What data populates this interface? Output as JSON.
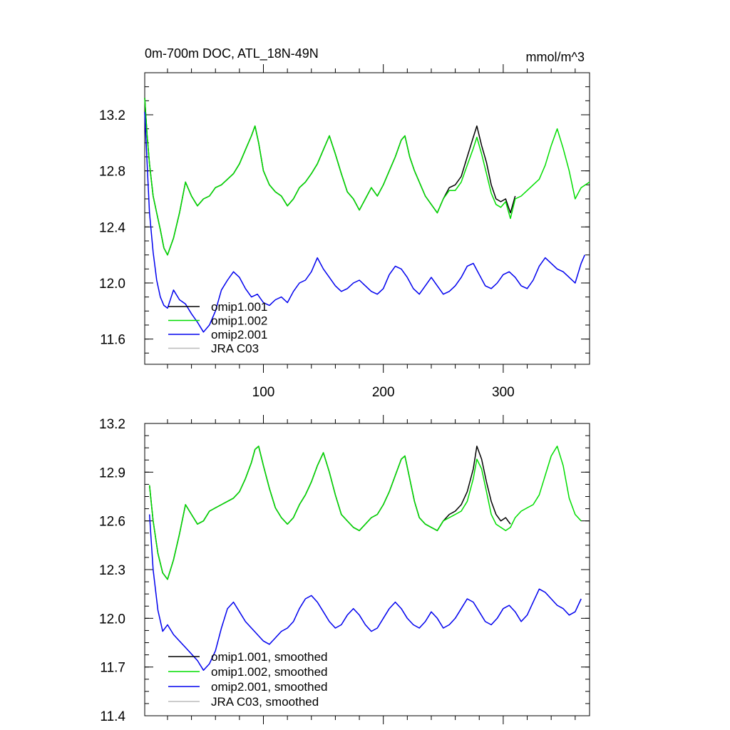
{
  "chart_data": [
    {
      "type": "line",
      "title": "0m-700m DOC, ATL_18N-49N",
      "units": "mmol/m^3",
      "xlim": [
        1,
        372
      ],
      "ylim": [
        11.42,
        13.5
      ],
      "xticks": [
        100,
        200,
        300
      ],
      "xtick_labels": [
        "100",
        "200",
        "300"
      ],
      "yticks": [
        11.6,
        12.0,
        12.4,
        12.8,
        13.2
      ],
      "ytick_labels": [
        "11.6",
        "12.0",
        "12.4",
        "12.8",
        "13.2"
      ],
      "grid": false,
      "legend_position": "bottom-left",
      "legend": [
        "omip1.001",
        "omip1.002",
        "omip2.001",
        "JRA C03"
      ],
      "series": [
        {
          "name": "omip1.001",
          "color": "#000000",
          "x": [
            1,
            3,
            5,
            8,
            11,
            14,
            17,
            20,
            25,
            30,
            35,
            40,
            45,
            50,
            55,
            60,
            65,
            70,
            75,
            80,
            85,
            90,
            93,
            96,
            100,
            105,
            110,
            115,
            120,
            125,
            130,
            135,
            140,
            145,
            150,
            155,
            160,
            165,
            170,
            175,
            180,
            185,
            190,
            195,
            200,
            205,
            210,
            215,
            218,
            222,
            226,
            230,
            235,
            240,
            245,
            250,
            255,
            260,
            265,
            270,
            275,
            278,
            282,
            286,
            290,
            294,
            298,
            302,
            306,
            310
          ],
          "y": [
            13.32,
            13.05,
            12.85,
            12.62,
            12.5,
            12.38,
            12.25,
            12.2,
            12.32,
            12.5,
            12.72,
            12.62,
            12.55,
            12.6,
            12.62,
            12.68,
            12.7,
            12.74,
            12.78,
            12.85,
            12.95,
            13.05,
            13.12,
            13.0,
            12.8,
            12.7,
            12.65,
            12.62,
            12.55,
            12.6,
            12.68,
            12.72,
            12.78,
            12.85,
            12.95,
            13.05,
            12.92,
            12.78,
            12.65,
            12.6,
            12.52,
            12.6,
            12.68,
            12.62,
            12.7,
            12.8,
            12.9,
            13.02,
            13.05,
            12.9,
            12.8,
            12.72,
            12.62,
            12.56,
            12.5,
            12.6,
            12.68,
            12.7,
            12.76,
            12.9,
            13.04,
            13.12,
            12.98,
            12.86,
            12.7,
            12.6,
            12.58,
            12.6,
            12.5,
            12.62
          ]
        },
        {
          "name": "omip1.002",
          "color": "#00dd00",
          "x": [
            1,
            3,
            5,
            8,
            11,
            14,
            17,
            20,
            25,
            30,
            35,
            40,
            45,
            50,
            55,
            60,
            65,
            70,
            75,
            80,
            85,
            90,
            93,
            96,
            100,
            105,
            110,
            115,
            120,
            125,
            130,
            135,
            140,
            145,
            150,
            155,
            160,
            165,
            170,
            175,
            180,
            185,
            190,
            195,
            200,
            205,
            210,
            215,
            218,
            222,
            226,
            230,
            235,
            240,
            245,
            250,
            255,
            260,
            265,
            270,
            275,
            278,
            282,
            286,
            290,
            294,
            298,
            302,
            306,
            310,
            315,
            320,
            325,
            330,
            335,
            340,
            345,
            350,
            355,
            360,
            365,
            372
          ],
          "y": [
            13.32,
            13.05,
            12.85,
            12.62,
            12.5,
            12.38,
            12.25,
            12.2,
            12.32,
            12.5,
            12.72,
            12.62,
            12.55,
            12.6,
            12.62,
            12.68,
            12.7,
            12.74,
            12.78,
            12.85,
            12.95,
            13.05,
            13.12,
            13.0,
            12.8,
            12.7,
            12.65,
            12.62,
            12.55,
            12.6,
            12.68,
            12.72,
            12.78,
            12.85,
            12.95,
            13.05,
            12.92,
            12.78,
            12.65,
            12.6,
            12.52,
            12.6,
            12.68,
            12.62,
            12.7,
            12.8,
            12.9,
            13.02,
            13.05,
            12.9,
            12.8,
            12.72,
            12.62,
            12.56,
            12.5,
            12.6,
            12.66,
            12.66,
            12.72,
            12.84,
            12.96,
            13.04,
            12.92,
            12.78,
            12.64,
            12.56,
            12.54,
            12.58,
            12.46,
            12.6,
            12.62,
            12.66,
            12.7,
            12.74,
            12.84,
            12.98,
            13.1,
            12.96,
            12.8,
            12.6,
            12.68,
            12.72
          ]
        },
        {
          "name": "omip2.001",
          "color": "#0000ee",
          "x": [
            1,
            3,
            5,
            8,
            11,
            14,
            17,
            20,
            25,
            30,
            35,
            40,
            45,
            50,
            55,
            60,
            65,
            70,
            75,
            80,
            85,
            90,
            95,
            100,
            105,
            110,
            115,
            120,
            125,
            130,
            135,
            140,
            145,
            150,
            155,
            160,
            165,
            170,
            175,
            180,
            185,
            190,
            195,
            200,
            205,
            210,
            215,
            220,
            225,
            230,
            235,
            240,
            245,
            250,
            255,
            260,
            265,
            270,
            275,
            280,
            285,
            290,
            295,
            300,
            305,
            310,
            315,
            320,
            325,
            330,
            335,
            340,
            345,
            350,
            355,
            360,
            365,
            368
          ],
          "y": [
            13.22,
            12.85,
            12.5,
            12.22,
            12.02,
            11.9,
            11.84,
            11.82,
            11.95,
            11.88,
            11.85,
            11.78,
            11.72,
            11.65,
            11.7,
            11.8,
            11.95,
            12.02,
            12.08,
            12.04,
            11.96,
            11.9,
            11.92,
            11.86,
            11.84,
            11.88,
            11.9,
            11.86,
            11.94,
            12.0,
            12.02,
            12.08,
            12.18,
            12.1,
            12.04,
            11.98,
            11.94,
            11.96,
            12.0,
            12.02,
            11.98,
            11.94,
            11.92,
            11.96,
            12.06,
            12.12,
            12.1,
            12.04,
            11.96,
            11.92,
            11.98,
            12.04,
            11.98,
            11.92,
            11.94,
            11.98,
            12.04,
            12.12,
            12.14,
            12.06,
            11.98,
            11.96,
            12.0,
            12.06,
            12.08,
            12.04,
            11.98,
            11.96,
            12.02,
            12.12,
            12.18,
            12.14,
            12.1,
            12.08,
            12.04,
            12.0,
            12.14,
            12.2
          ]
        }
      ]
    },
    {
      "type": "line",
      "title": "",
      "units": "",
      "xlim": [
        1,
        372
      ],
      "ylim": [
        11.4,
        13.2
      ],
      "xticks": [
        100,
        200,
        300
      ],
      "xtick_labels": [],
      "yticks": [
        11.4,
        11.7,
        12.0,
        12.3,
        12.6,
        12.9,
        13.2
      ],
      "ytick_labels": [
        "11.4",
        "11.7",
        "12.0",
        "12.3",
        "12.6",
        "12.9",
        "13.2"
      ],
      "grid": false,
      "legend_position": "bottom-left",
      "legend": [
        "omip1.001, smoothed",
        "omip1.002, smoothed",
        "omip2.001, smoothed",
        "JRA C03, smoothed"
      ],
      "series": [
        {
          "name": "omip1.001, smoothed",
          "color": "#000000",
          "x": [
            5,
            8,
            12,
            16,
            20,
            25,
            30,
            35,
            40,
            45,
            50,
            55,
            60,
            65,
            70,
            75,
            80,
            85,
            90,
            93,
            96,
            100,
            105,
            110,
            115,
            120,
            125,
            130,
            135,
            140,
            145,
            150,
            155,
            160,
            165,
            170,
            175,
            180,
            185,
            190,
            195,
            200,
            205,
            210,
            215,
            218,
            222,
            226,
            230,
            235,
            240,
            245,
            250,
            255,
            260,
            265,
            270,
            275,
            278,
            282,
            286,
            290,
            294,
            298,
            302,
            306
          ],
          "y": [
            12.82,
            12.6,
            12.4,
            12.28,
            12.24,
            12.36,
            12.52,
            12.7,
            12.64,
            12.58,
            12.6,
            12.66,
            12.68,
            12.7,
            12.72,
            12.74,
            12.78,
            12.86,
            12.96,
            13.04,
            13.06,
            12.94,
            12.8,
            12.68,
            12.62,
            12.58,
            12.62,
            12.7,
            12.76,
            12.84,
            12.94,
            13.02,
            12.9,
            12.76,
            12.64,
            12.6,
            12.56,
            12.54,
            12.58,
            12.62,
            12.64,
            12.7,
            12.78,
            12.88,
            12.98,
            13.0,
            12.86,
            12.72,
            12.62,
            12.58,
            12.56,
            12.54,
            12.6,
            12.64,
            12.66,
            12.7,
            12.78,
            12.92,
            13.06,
            12.98,
            12.84,
            12.72,
            12.64,
            12.6,
            12.62,
            12.58
          ]
        },
        {
          "name": "omip1.002, smoothed",
          "color": "#00dd00",
          "x": [
            5,
            8,
            12,
            16,
            20,
            25,
            30,
            35,
            40,
            45,
            50,
            55,
            60,
            65,
            70,
            75,
            80,
            85,
            90,
            93,
            96,
            100,
            105,
            110,
            115,
            120,
            125,
            130,
            135,
            140,
            145,
            150,
            155,
            160,
            165,
            170,
            175,
            180,
            185,
            190,
            195,
            200,
            205,
            210,
            215,
            218,
            222,
            226,
            230,
            235,
            240,
            245,
            250,
            255,
            260,
            265,
            270,
            275,
            278,
            282,
            286,
            290,
            294,
            298,
            302,
            306,
            310,
            315,
            320,
            325,
            330,
            335,
            340,
            345,
            350,
            355,
            360,
            365
          ],
          "y": [
            12.82,
            12.6,
            12.4,
            12.28,
            12.24,
            12.36,
            12.52,
            12.7,
            12.64,
            12.58,
            12.6,
            12.66,
            12.68,
            12.7,
            12.72,
            12.74,
            12.78,
            12.86,
            12.96,
            13.04,
            13.06,
            12.94,
            12.8,
            12.68,
            12.62,
            12.58,
            12.62,
            12.7,
            12.76,
            12.84,
            12.94,
            13.02,
            12.9,
            12.76,
            12.64,
            12.6,
            12.56,
            12.54,
            12.58,
            12.62,
            12.64,
            12.7,
            12.78,
            12.88,
            12.98,
            13.0,
            12.86,
            12.72,
            12.62,
            12.58,
            12.56,
            12.54,
            12.6,
            12.62,
            12.64,
            12.66,
            12.72,
            12.86,
            12.98,
            12.92,
            12.78,
            12.64,
            12.58,
            12.56,
            12.54,
            12.56,
            12.62,
            12.66,
            12.68,
            12.7,
            12.76,
            12.88,
            13.0,
            13.06,
            12.94,
            12.74,
            12.64,
            12.6
          ]
        },
        {
          "name": "omip2.001, smoothed",
          "color": "#0000ee",
          "x": [
            5,
            8,
            12,
            16,
            20,
            25,
            30,
            35,
            40,
            45,
            50,
            55,
            60,
            65,
            70,
            75,
            80,
            85,
            90,
            95,
            100,
            105,
            110,
            115,
            120,
            125,
            130,
            135,
            140,
            145,
            150,
            155,
            160,
            165,
            170,
            175,
            180,
            185,
            190,
            195,
            200,
            205,
            210,
            215,
            220,
            225,
            230,
            235,
            240,
            245,
            250,
            255,
            260,
            265,
            270,
            275,
            280,
            285,
            290,
            295,
            300,
            305,
            310,
            315,
            320,
            325,
            330,
            335,
            340,
            345,
            350,
            355,
            360,
            365
          ],
          "y": [
            12.64,
            12.3,
            12.05,
            11.92,
            11.96,
            11.9,
            11.86,
            11.82,
            11.78,
            11.74,
            11.68,
            11.72,
            11.8,
            11.94,
            12.06,
            12.1,
            12.04,
            11.98,
            11.94,
            11.9,
            11.86,
            11.84,
            11.88,
            11.92,
            11.94,
            11.98,
            12.06,
            12.12,
            12.14,
            12.1,
            12.04,
            11.98,
            11.94,
            11.96,
            12.02,
            12.06,
            12.02,
            11.96,
            11.92,
            11.94,
            12.0,
            12.06,
            12.1,
            12.06,
            12.0,
            11.96,
            11.94,
            11.98,
            12.04,
            12.0,
            11.94,
            11.96,
            12.0,
            12.06,
            12.12,
            12.1,
            12.04,
            11.98,
            11.96,
            12.0,
            12.06,
            12.08,
            12.04,
            11.98,
            12.02,
            12.1,
            12.18,
            12.16,
            12.12,
            12.08,
            12.06,
            12.02,
            12.04,
            12.12
          ]
        }
      ]
    }
  ]
}
